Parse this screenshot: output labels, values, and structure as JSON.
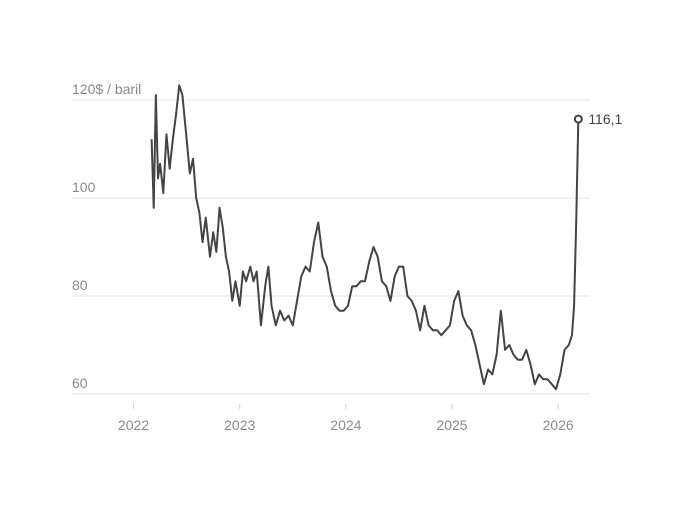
{
  "chart_data": {
    "type": "line",
    "x": [
      2022.17,
      2022.19,
      2022.21,
      2022.23,
      2022.25,
      2022.28,
      2022.31,
      2022.34,
      2022.37,
      2022.4,
      2022.43,
      2022.46,
      2022.5,
      2022.53,
      2022.56,
      2022.59,
      2022.62,
      2022.65,
      2022.68,
      2022.72,
      2022.75,
      2022.78,
      2022.81,
      2022.84,
      2022.87,
      2022.9,
      2022.93,
      2022.96,
      2023.0,
      2023.03,
      2023.06,
      2023.1,
      2023.13,
      2023.16,
      2023.2,
      2023.24,
      2023.27,
      2023.3,
      2023.34,
      2023.38,
      2023.42,
      2023.46,
      2023.5,
      2023.54,
      2023.58,
      2023.62,
      2023.66,
      2023.7,
      2023.74,
      2023.78,
      2023.82,
      2023.86,
      2023.9,
      2023.94,
      2023.98,
      2024.02,
      2024.06,
      2024.1,
      2024.14,
      2024.18,
      2024.22,
      2024.26,
      2024.3,
      2024.34,
      2024.38,
      2024.42,
      2024.46,
      2024.5,
      2024.54,
      2024.58,
      2024.62,
      2024.66,
      2024.7,
      2024.74,
      2024.78,
      2024.82,
      2024.86,
      2024.9,
      2024.94,
      2024.98,
      2025.02,
      2025.06,
      2025.1,
      2025.14,
      2025.18,
      2025.22,
      2025.26,
      2025.3,
      2025.34,
      2025.38,
      2025.42,
      2025.46,
      2025.5,
      2025.54,
      2025.58,
      2025.62,
      2025.66,
      2025.7,
      2025.74,
      2025.78,
      2025.82,
      2025.86,
      2025.9,
      2025.94,
      2025.98,
      2026.02,
      2026.06,
      2026.1,
      2026.13,
      2026.15,
      2026.17,
      2026.19
    ],
    "series": [
      {
        "color": "#444444",
        "values": [
          112,
          98,
          121,
          104,
          107,
          101,
          113,
          106,
          112,
          117,
          123,
          121,
          112,
          105,
          108,
          100,
          97,
          91,
          96,
          88,
          93,
          89,
          98,
          94,
          88,
          85,
          79,
          83,
          78,
          85,
          83,
          86,
          83,
          85,
          74,
          82,
          86,
          78,
          74,
          77,
          75,
          76,
          74,
          79,
          84,
          86,
          85,
          91,
          95,
          88,
          86,
          81,
          78,
          77,
          77,
          78,
          82,
          82,
          83,
          83,
          87,
          90,
          88,
          83,
          82,
          79,
          84,
          86,
          86,
          80,
          79,
          77,
          73,
          78,
          74,
          73,
          73,
          72,
          73,
          74,
          79,
          81,
          76,
          74,
          73,
          70,
          66,
          62,
          65,
          64,
          68,
          77,
          69,
          70,
          68,
          67,
          67,
          69,
          66,
          62,
          64,
          63,
          63,
          62,
          61,
          64,
          69,
          70,
          72,
          78,
          95,
          116.1
        ],
        "value_labels": [
          null,
          null,
          null,
          null,
          null,
          null,
          null,
          null,
          null,
          null,
          null,
          null,
          null,
          null,
          null,
          null,
          null,
          null,
          null,
          null,
          null,
          null,
          null,
          null,
          null,
          null,
          null,
          null,
          null,
          null,
          null,
          null,
          null,
          null,
          null,
          null,
          null,
          null,
          null,
          null,
          null,
          null,
          null,
          null,
          null,
          null,
          null,
          null,
          null,
          null,
          null,
          null,
          null,
          null,
          null,
          null,
          null,
          null,
          null,
          null,
          null,
          null,
          null,
          null,
          null,
          null,
          null,
          null,
          null,
          null,
          null,
          null,
          null,
          null,
          null,
          null,
          null,
          null,
          null,
          null,
          null,
          null,
          null,
          null,
          null,
          null,
          null,
          null,
          null,
          null,
          null,
          null,
          null,
          null,
          null,
          null,
          null,
          null,
          null,
          null,
          null,
          null,
          null,
          null,
          null,
          null,
          null,
          null,
          null,
          null,
          null,
          "116,1"
        ]
      }
    ],
    "xlim": [
      2021.42,
      2026.3
    ],
    "xticks": [
      2022,
      2023,
      2024,
      2025,
      2026
    ],
    "ylim": [
      58,
      125
    ],
    "yticks": [
      60,
      80,
      100,
      {
        "value": 120,
        "label": "120$ / baril"
      }
    ],
    "grid": true
  }
}
